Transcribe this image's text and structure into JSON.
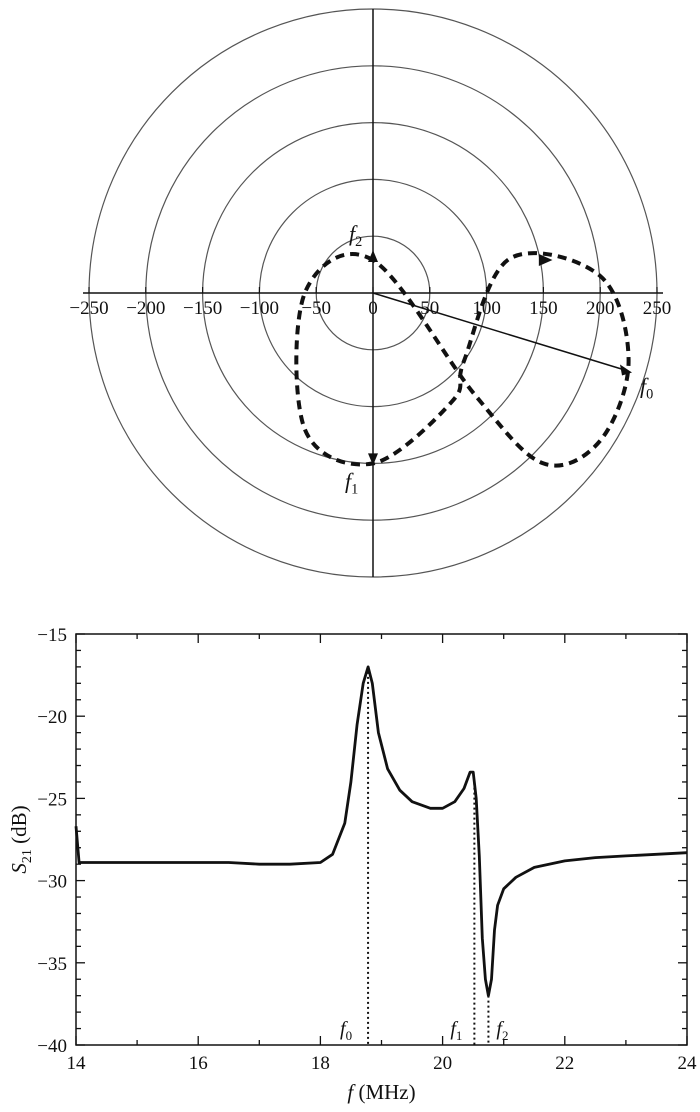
{
  "chart_data": [
    {
      "type": "polar",
      "radial_ticks": [
        "-250",
        "-200",
        "-150",
        "-100",
        "-50",
        "0",
        "50",
        "100",
        "150",
        "200",
        "250"
      ],
      "rings": [
        50,
        100,
        150,
        200,
        250
      ],
      "trace": {
        "style": "dashed",
        "description_points": [
          {
            "x": 0,
            "y": 29
          },
          {
            "x": -60,
            "y": 0
          },
          {
            "x": -60,
            "y": -120
          },
          {
            "x": 0,
            "y": -150
          },
          {
            "x": 70,
            "y": -95
          },
          {
            "x": 80,
            "y": -60
          },
          {
            "x": 120,
            "y": 30
          },
          {
            "x": 200,
            "y": 15
          },
          {
            "x": 225,
            "y": -60
          },
          {
            "x": 200,
            "y": -130
          },
          {
            "x": 150,
            "y": -150
          },
          {
            "x": 90,
            "y": -90
          }
        ]
      },
      "markers": [
        {
          "label_main": "f",
          "label_sub": "2",
          "x": 0,
          "y": 29
        },
        {
          "label_main": "f",
          "label_sub": "1",
          "x": 0,
          "y": -150
        },
        {
          "label_main": "f",
          "label_sub": "0",
          "x": 228,
          "y": -70
        }
      ]
    },
    {
      "type": "line",
      "xlabel_main": "f",
      "xlabel_unit": "(MHz)",
      "ylabel_main": "S",
      "ylabel_sub": "21",
      "ylabel_unit": "(dB)",
      "xlim": [
        14,
        24
      ],
      "ylim": [
        -40,
        -15
      ],
      "x_ticks": [
        14,
        16,
        18,
        20,
        22,
        24
      ],
      "y_ticks": [
        -15,
        -20,
        -25,
        -30,
        -35,
        -40
      ],
      "series": [
        {
          "x": [
            14.0,
            14.05,
            14.5,
            15,
            15.5,
            16,
            16.5,
            17,
            17.5,
            18,
            18.2,
            18.4,
            18.5,
            18.6,
            18.7,
            18.78,
            18.85,
            18.95,
            19.1,
            19.3,
            19.5,
            19.8,
            20.0,
            20.2,
            20.35,
            20.45,
            20.5,
            20.55,
            20.6,
            20.65,
            20.7,
            20.75,
            20.8,
            20.85,
            20.9,
            21.0,
            21.2,
            21.5,
            22.0,
            22.5,
            23.0,
            23.5,
            24.0
          ],
          "y": [
            -26.7,
            -28.9,
            -28.9,
            -28.9,
            -28.9,
            -28.9,
            -28.9,
            -29.0,
            -29.0,
            -28.9,
            -28.4,
            -26.5,
            -24.0,
            -20.5,
            -18.0,
            -17.0,
            -18.0,
            -21.0,
            -23.2,
            -24.5,
            -25.2,
            -25.6,
            -25.6,
            -25.2,
            -24.4,
            -23.4,
            -23.4,
            -25.0,
            -28.5,
            -33.5,
            -36.0,
            -37.0,
            -36.0,
            -33.0,
            -31.5,
            -30.5,
            -29.8,
            -29.2,
            -28.8,
            -28.6,
            -28.5,
            -28.4,
            -28.3
          ]
        }
      ],
      "markers": [
        {
          "label_main": "f",
          "label_sub": "0",
          "x": 18.78
        },
        {
          "label_main": "f",
          "label_sub": "1",
          "x": 20.52
        },
        {
          "label_main": "f",
          "label_sub": "2",
          "x": 20.75
        }
      ]
    }
  ]
}
